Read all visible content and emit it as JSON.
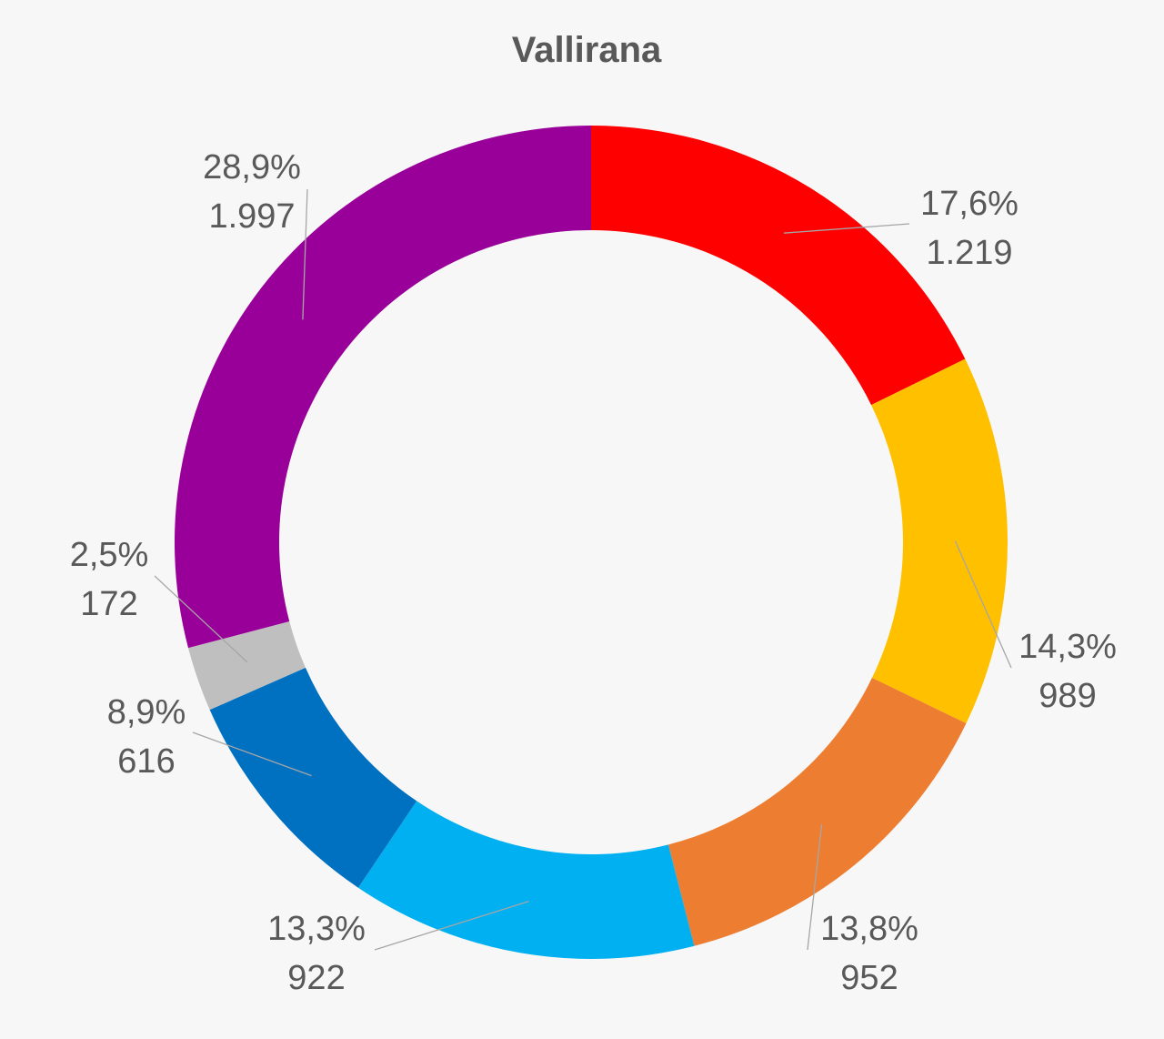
{
  "chart_data": {
    "type": "pie",
    "variant": "donut",
    "title": "Vallirana",
    "legend": "none",
    "slices": [
      {
        "value": 1219,
        "percent_label": "17,6%",
        "value_label": "1.219",
        "color": "#FF0000"
      },
      {
        "value": 989,
        "percent_label": "14,3%",
        "value_label": "989",
        "color": "#FFC000"
      },
      {
        "value": 952,
        "percent_label": "13,8%",
        "value_label": "952",
        "color": "#ED7D31"
      },
      {
        "value": 922,
        "percent_label": "13,3%",
        "value_label": "922",
        "color": "#00B0F0"
      },
      {
        "value": 616,
        "percent_label": "8,9%",
        "value_label": "616",
        "color": "#0070C0"
      },
      {
        "value": 172,
        "percent_label": "2,5%",
        "value_label": "172",
        "color": "#BFBFBF"
      },
      {
        "value": 1997,
        "percent_label": "28,9%",
        "value_label": "1.997",
        "color": "#990099"
      }
    ]
  }
}
